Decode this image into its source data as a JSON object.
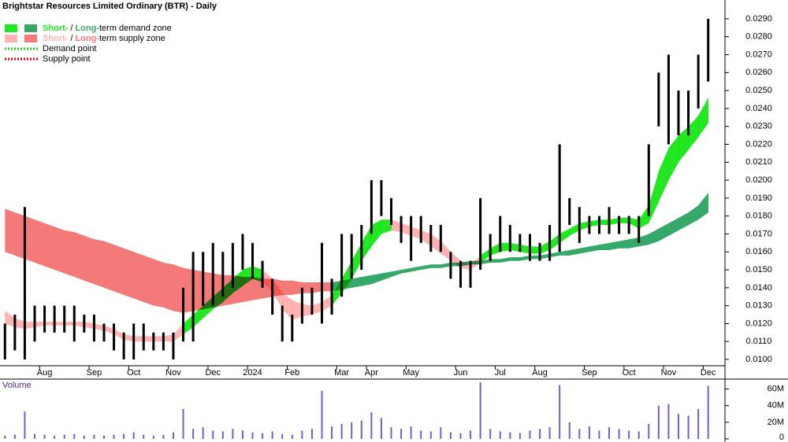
{
  "chart_data": [
    {
      "type": "range_bar",
      "title": "Brightstar Resources Limited Ordinary (BTR) - Daily",
      "categories": [
        null,
        null,
        null,
        null,
        "Aug",
        null,
        null,
        null,
        null,
        "Sep",
        null,
        null,
        null,
        "Oct",
        null,
        null,
        null,
        "Nov",
        null,
        null,
        null,
        "Dec",
        null,
        null,
        null,
        "2024",
        null,
        null,
        null,
        "Feb",
        null,
        null,
        null,
        null,
        "Mar",
        null,
        null,
        "Apr",
        null,
        null,
        null,
        "May",
        null,
        null,
        null,
        null,
        "Jun",
        null,
        null,
        null,
        "Jul",
        null,
        null,
        null,
        "Aug",
        null,
        null,
        null,
        null,
        "Sep",
        null,
        null,
        null,
        "Oct",
        null,
        null,
        null,
        "Nov",
        null,
        null,
        null,
        "Dec"
      ],
      "high": [
        0.012,
        0.0125,
        0.0185,
        0.013,
        0.013,
        0.013,
        0.013,
        0.013,
        0.0125,
        0.0125,
        0.012,
        0.012,
        0.0115,
        0.012,
        0.012,
        0.0115,
        0.0115,
        0.0115,
        0.014,
        0.016,
        0.016,
        0.0165,
        0.016,
        0.0165,
        0.017,
        0.0165,
        0.0155,
        0.0145,
        0.013,
        0.0125,
        0.014,
        0.014,
        0.0165,
        0.0145,
        0.017,
        0.017,
        0.0175,
        0.02,
        0.02,
        0.019,
        0.018,
        0.018,
        0.018,
        0.0175,
        0.0175,
        0.016,
        0.0155,
        0.0155,
        0.019,
        0.017,
        0.018,
        0.0175,
        0.017,
        0.017,
        0.0165,
        0.0175,
        0.022,
        0.019,
        0.0185,
        0.018,
        0.018,
        0.0185,
        0.018,
        0.018,
        0.018,
        0.022,
        0.026,
        0.027,
        0.025,
        0.025,
        0.027,
        0.029
      ],
      "low": [
        0.01,
        0.0105,
        0.01,
        0.011,
        0.0115,
        0.0115,
        0.0115,
        0.011,
        0.0115,
        0.011,
        0.011,
        0.0105,
        0.01,
        0.01,
        0.0105,
        0.0105,
        0.0105,
        0.01,
        0.011,
        0.011,
        0.013,
        0.013,
        0.0135,
        0.014,
        0.015,
        0.0145,
        0.014,
        0.0125,
        0.011,
        0.011,
        0.012,
        0.0125,
        0.012,
        0.0125,
        0.0135,
        0.0145,
        0.015,
        0.017,
        0.018,
        0.0175,
        0.0165,
        0.0155,
        0.0165,
        0.016,
        0.016,
        0.0145,
        0.014,
        0.014,
        0.015,
        0.0155,
        0.016,
        0.016,
        0.016,
        0.0155,
        0.0155,
        0.0155,
        0.016,
        0.0175,
        0.0165,
        0.017,
        0.017,
        0.017,
        0.017,
        0.017,
        0.0165,
        0.018,
        0.023,
        0.022,
        0.0225,
        0.0225,
        0.024,
        0.0255
      ],
      "bar_color": "#000000",
      "long_term_zone": {
        "upper": [
          0.0184,
          0.0182,
          0.018,
          0.0178,
          0.0176,
          0.0174,
          0.0172,
          0.0171,
          0.0169,
          0.0167,
          0.0166,
          0.0164,
          0.0162,
          0.016,
          0.0158,
          0.0156,
          0.0154,
          0.0153,
          0.0151,
          0.015,
          0.0149,
          0.0148,
          0.0147,
          0.0147,
          0.0146,
          0.0146,
          0.0145,
          0.0145,
          0.0144,
          0.0144,
          0.0143,
          0.0143,
          0.0143,
          0.0143,
          0.0144,
          0.0145,
          0.0146,
          0.0147,
          0.0148,
          0.0149,
          0.015,
          0.0151,
          0.0152,
          0.0153,
          0.0153,
          0.0154,
          0.0154,
          0.0155,
          0.0155,
          0.0156,
          0.0156,
          0.0157,
          0.0157,
          0.0158,
          0.0158,
          0.0159,
          0.016,
          0.0161,
          0.0162,
          0.0163,
          0.0164,
          0.0165,
          0.0166,
          0.0167,
          0.0168,
          0.017,
          0.0173,
          0.0176,
          0.0179,
          0.0182,
          0.0186,
          0.0193
        ],
        "lower": [
          0.016,
          0.0158,
          0.0156,
          0.0154,
          0.0152,
          0.015,
          0.0148,
          0.0146,
          0.0144,
          0.0142,
          0.014,
          0.0138,
          0.0136,
          0.0134,
          0.0132,
          0.013,
          0.0129,
          0.0127,
          0.0126,
          0.0127,
          0.0128,
          0.0129,
          0.013,
          0.0131,
          0.0132,
          0.0133,
          0.0134,
          0.0135,
          0.0136,
          0.0136,
          0.0137,
          0.0137,
          0.0138,
          0.0138,
          0.0139,
          0.014,
          0.0141,
          0.0142,
          0.0144,
          0.0146,
          0.0148,
          0.0149,
          0.015,
          0.0151,
          0.0151,
          0.0152,
          0.0152,
          0.0153,
          0.0153,
          0.0154,
          0.0154,
          0.0155,
          0.0155,
          0.0156,
          0.0156,
          0.0157,
          0.0158,
          0.0158,
          0.0159,
          0.016,
          0.0161,
          0.0161,
          0.0162,
          0.0162,
          0.0163,
          0.0164,
          0.0166,
          0.0169,
          0.0172,
          0.0175,
          0.0178,
          0.0182
        ],
        "colors": [
          "#f47a7a",
          "#f47a7a",
          "#f47a7a",
          "#f47a7a",
          "#f47a7a",
          "#f47a7a",
          "#f47a7a",
          "#f47a7a",
          "#f47a7a",
          "#f47a7a",
          "#f47a7a",
          "#f47a7a",
          "#f47a7a",
          "#f47a7a",
          "#f47a7a",
          "#f47a7a",
          "#f47a7a",
          "#f47a7a",
          "#f47a7a",
          "#f47a7a",
          "#f47a7a",
          "#f47a7a",
          "#f47a7a",
          "#f47a7a",
          "#f47a7a",
          "#f47a7a",
          "#f47a7a",
          "#f47a7a",
          "#f47a7a",
          "#f47a7a",
          "#f47a7a",
          "#f47a7a",
          "#f47a7a",
          "#36a86a",
          "#36a86a",
          "#36a86a",
          "#36a86a",
          "#36a86a",
          "#36a86a",
          "#36a86a",
          "#36a86a",
          "#36a86a",
          "#36a86a",
          "#36a86a",
          "#36a86a",
          "#36a86a",
          "#36a86a",
          "#36a86a",
          "#36a86a",
          "#36a86a",
          "#36a86a",
          "#36a86a",
          "#36a86a",
          "#36a86a",
          "#36a86a",
          "#36a86a",
          "#36a86a",
          "#36a86a",
          "#36a86a",
          "#36a86a",
          "#36a86a",
          "#36a86a",
          "#36a86a",
          "#36a86a",
          "#36a86a",
          "#36a86a",
          "#36a86a",
          "#36a86a",
          "#36a86a",
          "#36a86a",
          "#36a86a",
          "#36a86a"
        ]
      },
      "short_term_zone": {
        "upper": [
          0.0127,
          0.0123,
          0.0121,
          0.0121,
          0.0121,
          0.0121,
          0.0121,
          0.0121,
          0.0121,
          0.012,
          0.0119,
          0.0117,
          0.0114,
          0.0113,
          0.0113,
          0.0113,
          0.0113,
          0.0114,
          0.012,
          0.0125,
          0.013,
          0.0135,
          0.014,
          0.0145,
          0.015,
          0.0152,
          0.015,
          0.0145,
          0.0137,
          0.0133,
          0.0131,
          0.013,
          0.0132,
          0.0136,
          0.0145,
          0.0155,
          0.0165,
          0.0175,
          0.0178,
          0.0178,
          0.0176,
          0.0174,
          0.0172,
          0.017,
          0.0166,
          0.016,
          0.0155,
          0.0153,
          0.0158,
          0.0162,
          0.0165,
          0.0165,
          0.0164,
          0.0163,
          0.0163,
          0.0166,
          0.017,
          0.0173,
          0.0176,
          0.0177,
          0.0178,
          0.0178,
          0.0179,
          0.0179,
          0.0178,
          0.0186,
          0.0205,
          0.0218,
          0.0225,
          0.023,
          0.0236,
          0.0246
        ],
        "lower": [
          0.012,
          0.0118,
          0.0117,
          0.0118,
          0.0119,
          0.0119,
          0.0119,
          0.0119,
          0.0118,
          0.0117,
          0.0116,
          0.0114,
          0.0111,
          0.011,
          0.011,
          0.011,
          0.011,
          0.011,
          0.0114,
          0.0118,
          0.0123,
          0.0128,
          0.0132,
          0.0137,
          0.0141,
          0.0145,
          0.0143,
          0.0138,
          0.0128,
          0.0122,
          0.0124,
          0.0125,
          0.0127,
          0.013,
          0.0137,
          0.0145,
          0.0155,
          0.0163,
          0.017,
          0.0172,
          0.0171,
          0.0169,
          0.0167,
          0.0163,
          0.0159,
          0.0155,
          0.0151,
          0.015,
          0.0154,
          0.0158,
          0.016,
          0.0161,
          0.016,
          0.0159,
          0.0159,
          0.0161,
          0.0165,
          0.0169,
          0.0172,
          0.0174,
          0.0175,
          0.0175,
          0.0176,
          0.0176,
          0.0173,
          0.0176,
          0.0188,
          0.02,
          0.021,
          0.0217,
          0.0224,
          0.0232
        ],
        "colors": [
          "#ffb3b3",
          "#ffb3b3",
          "#ffb3b3",
          "#ffb3b3",
          "#ffb3b3",
          "#ffb3b3",
          "#ffb3b3",
          "#ffb3b3",
          "#ffb3b3",
          "#ffb3b3",
          "#ffb3b3",
          "#ffb3b3",
          "#ffb3b3",
          "#ffb3b3",
          "#ffb3b3",
          "#ffb3b3",
          "#ffb3b3",
          "#ffb3b3",
          "#22e822",
          "#22e822",
          "#22e822",
          "#22e822",
          "#22e822",
          "#22e822",
          "#22e822",
          "#22e822",
          "#ffb3b3",
          "#ffb3b3",
          "#ffb3b3",
          "#ffb3b3",
          "#ffb3b3",
          "#ffb3b3",
          "#ffb3b3",
          "#22e822",
          "#22e822",
          "#22e822",
          "#22e822",
          "#22e822",
          "#22e822",
          "#ffb3b3",
          "#ffb3b3",
          "#ffb3b3",
          "#ffb3b3",
          "#ffb3b3",
          "#ffb3b3",
          "#ffb3b3",
          "#ffb3b3",
          "#ffb3b3",
          "#22e822",
          "#22e822",
          "#22e822",
          "#22e822",
          "#22e822",
          "#22e822",
          "#22e822",
          "#22e822",
          "#22e822",
          "#22e822",
          "#22e822",
          "#22e822",
          "#22e822",
          "#22e822",
          "#22e822",
          "#22e822",
          "#22e822",
          "#22e822",
          "#22e822",
          "#22e822",
          "#22e822",
          "#22e822",
          "#22e822",
          "#22e822"
        ]
      },
      "legend": [
        {
          "short": "Short-",
          "sep": "/",
          "long": "Long-",
          "text": "term demand zone",
          "short_color": "#22e822",
          "long_color": "#36a86a"
        },
        {
          "short": "Short-",
          "sep": "/",
          "long": "Long-",
          "text": "term supply zone",
          "short_color": "#ffb3b3",
          "long_color": "#f47a7a"
        },
        {
          "text": "Demand point",
          "color": "#22cc22"
        },
        {
          "text": "Supply point",
          "color": "#dd0000"
        }
      ],
      "ylim": [
        0.00965,
        0.03005
      ],
      "yticks": [
        {
          "value": 0.01,
          "label": "0.0100"
        },
        {
          "value": 0.011,
          "label": "0.0110"
        },
        {
          "value": 0.012,
          "label": "0.0120"
        },
        {
          "value": 0.013,
          "label": "0.0130"
        },
        {
          "value": 0.014,
          "label": "0.0140"
        },
        {
          "value": 0.015,
          "label": "0.0150"
        },
        {
          "value": 0.016,
          "label": "0.0160"
        },
        {
          "value": 0.017,
          "label": "0.0170"
        },
        {
          "value": 0.018,
          "label": "0.0180"
        },
        {
          "value": 0.019,
          "label": "0.0190"
        },
        {
          "value": 0.02,
          "label": "0.0200"
        },
        {
          "value": 0.021,
          "label": "0.0210"
        },
        {
          "value": 0.022,
          "label": "0.0220"
        },
        {
          "value": 0.023,
          "label": "0.0230"
        },
        {
          "value": 0.024,
          "label": "0.0240"
        },
        {
          "value": 0.025,
          "label": "0.0250"
        },
        {
          "value": 0.026,
          "label": "0.0260"
        },
        {
          "value": 0.027,
          "label": "0.0270"
        },
        {
          "value": 0.028,
          "label": "0.0280"
        },
        {
          "value": 0.029,
          "label": "0.0290"
        }
      ]
    },
    {
      "type": "bar",
      "title": "Volume",
      "values": [
        4000000,
        5000000,
        33000000,
        6000000,
        5000000,
        4000000,
        5000000,
        6000000,
        4000000,
        5000000,
        4000000,
        5000000,
        6000000,
        8000000,
        5000000,
        4000000,
        5000000,
        8000000,
        36000000,
        12000000,
        14000000,
        10000000,
        9000000,
        12000000,
        10000000,
        8000000,
        7000000,
        9000000,
        6000000,
        5000000,
        10000000,
        12000000,
        58000000,
        15000000,
        18000000,
        20000000,
        22000000,
        32000000,
        25000000,
        14000000,
        12000000,
        15000000,
        10000000,
        9000000,
        14000000,
        8000000,
        7000000,
        10000000,
        68000000,
        12000000,
        9000000,
        8000000,
        7000000,
        10000000,
        12000000,
        14000000,
        65000000,
        20000000,
        12000000,
        15000000,
        10000000,
        14000000,
        12000000,
        10000000,
        9000000,
        18000000,
        40000000,
        42000000,
        30000000,
        28000000,
        36000000,
        64000000
      ],
      "color": "#6b63c9",
      "ylim": [
        0,
        72000000
      ],
      "yticks": [
        0,
        {
          "value": 20000000,
          "label": "20M"
        },
        {
          "value": 40000000,
          "label": "40M"
        },
        {
          "value": 60000000,
          "label": "60M"
        }
      ]
    }
  ]
}
